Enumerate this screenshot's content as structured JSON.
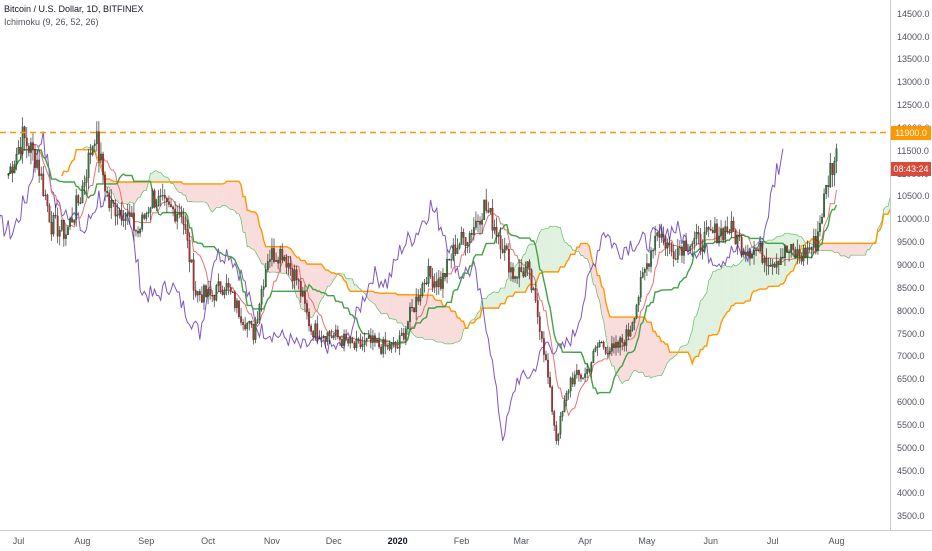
{
  "legend": {
    "symbol_line": "Bitcoin / U.S. Dollar, 1D, BITFINEX",
    "indicator_line": "Ichimoku (9, 26, 52, 26)"
  },
  "price_tags": {
    "resistance": "11900.0",
    "resistance_color": "#ff9800",
    "countdown": "08:43:24",
    "countdown_color": "#d94a3a"
  },
  "colors": {
    "up_candle": "#26a69a",
    "down_candle": "#ef5350",
    "candle_body_up": "#2e7d32",
    "candle_body_down": "#c62828",
    "conversion_line": "#e57373",
    "base_line": "#43a047",
    "lagging_span": "#7e57c2",
    "leading_span_b": "#ff9800",
    "cloud_bull": "#a5d6a7",
    "cloud_bear": "#ef9a9a"
  },
  "chart_data": {
    "type": "candlestick",
    "title": "Bitcoin / U.S. Dollar, 1D, BITFINEX",
    "indicator": "Ichimoku (9, 26, 52, 26)",
    "x_ticks": [
      "Jul",
      "Aug",
      "Sep",
      "Oct",
      "Nov",
      "Dec",
      "2020",
      "Feb",
      "Mar",
      "Apr",
      "May",
      "Jun",
      "Jul",
      "Aug"
    ],
    "y_ticks": [
      "3500.0",
      "4000.0",
      "4500.0",
      "5000.0",
      "5500.0",
      "6000.0",
      "6500.0",
      "7000.0",
      "7500.0",
      "8000.0",
      "8500.0",
      "9000.0",
      "9500.0",
      "10000.0",
      "10500.0",
      "11000.0",
      "11500.0",
      "12000.0",
      "12500.0",
      "13000.0",
      "13500.0",
      "14000.0",
      "14500.0"
    ],
    "ylim": [
      3200,
      14800
    ],
    "horizontal_line": 11900,
    "closes_weekly": [
      {
        "date": "2019-06-26",
        "close": 11000
      },
      {
        "date": "2019-07-03",
        "close": 11800
      },
      {
        "date": "2019-07-10",
        "close": 11300
      },
      {
        "date": "2019-07-17",
        "close": 9900
      },
      {
        "date": "2019-07-24",
        "close": 9700
      },
      {
        "date": "2019-07-31",
        "close": 10500
      },
      {
        "date": "2019-08-07",
        "close": 11900
      },
      {
        "date": "2019-08-14",
        "close": 10300
      },
      {
        "date": "2019-08-21",
        "close": 10200
      },
      {
        "date": "2019-08-28",
        "close": 9700
      },
      {
        "date": "2019-09-04",
        "close": 10500
      },
      {
        "date": "2019-09-11",
        "close": 10200
      },
      {
        "date": "2019-09-18",
        "close": 10200
      },
      {
        "date": "2019-09-25",
        "close": 8400
      },
      {
        "date": "2019-10-02",
        "close": 8300
      },
      {
        "date": "2019-10-09",
        "close": 8600
      },
      {
        "date": "2019-10-16",
        "close": 8000
      },
      {
        "date": "2019-10-23",
        "close": 7500
      },
      {
        "date": "2019-10-30",
        "close": 9200
      },
      {
        "date": "2019-11-06",
        "close": 9300
      },
      {
        "date": "2019-11-13",
        "close": 8700
      },
      {
        "date": "2019-11-20",
        "close": 7600
      },
      {
        "date": "2019-11-27",
        "close": 7500
      },
      {
        "date": "2019-12-04",
        "close": 7400
      },
      {
        "date": "2019-12-11",
        "close": 7200
      },
      {
        "date": "2019-12-18",
        "close": 7300
      },
      {
        "date": "2019-12-25",
        "close": 7200
      },
      {
        "date": "2020-01-01",
        "close": 7200
      },
      {
        "date": "2020-01-08",
        "close": 8000
      },
      {
        "date": "2020-01-15",
        "close": 8800
      },
      {
        "date": "2020-01-22",
        "close": 8600
      },
      {
        "date": "2020-01-29",
        "close": 9400
      },
      {
        "date": "2020-02-05",
        "close": 9700
      },
      {
        "date": "2020-02-12",
        "close": 10300
      },
      {
        "date": "2020-02-19",
        "close": 9700
      },
      {
        "date": "2020-02-26",
        "close": 8800
      },
      {
        "date": "2020-03-04",
        "close": 8900
      },
      {
        "date": "2020-03-11",
        "close": 7500
      },
      {
        "date": "2020-03-18",
        "close": 5200
      },
      {
        "date": "2020-03-25",
        "close": 6500
      },
      {
        "date": "2020-04-01",
        "close": 6600
      },
      {
        "date": "2020-04-08",
        "close": 7300
      },
      {
        "date": "2020-04-15",
        "close": 7100
      },
      {
        "date": "2020-04-22",
        "close": 7500
      },
      {
        "date": "2020-04-29",
        "close": 8700
      },
      {
        "date": "2020-05-06",
        "close": 9800
      },
      {
        "date": "2020-05-13",
        "close": 9300
      },
      {
        "date": "2020-05-20",
        "close": 9500
      },
      {
        "date": "2020-05-27",
        "close": 9500
      },
      {
        "date": "2020-06-03",
        "close": 9700
      },
      {
        "date": "2020-06-10",
        "close": 9800
      },
      {
        "date": "2020-06-17",
        "close": 9400
      },
      {
        "date": "2020-06-24",
        "close": 9300
      },
      {
        "date": "2020-07-01",
        "close": 9100
      },
      {
        "date": "2020-07-08",
        "close": 9300
      },
      {
        "date": "2020-07-15",
        "close": 9200
      },
      {
        "date": "2020-07-22",
        "close": 9500
      },
      {
        "date": "2020-07-29",
        "close": 11100
      },
      {
        "date": "2020-08-01",
        "close": 11400
      }
    ]
  }
}
